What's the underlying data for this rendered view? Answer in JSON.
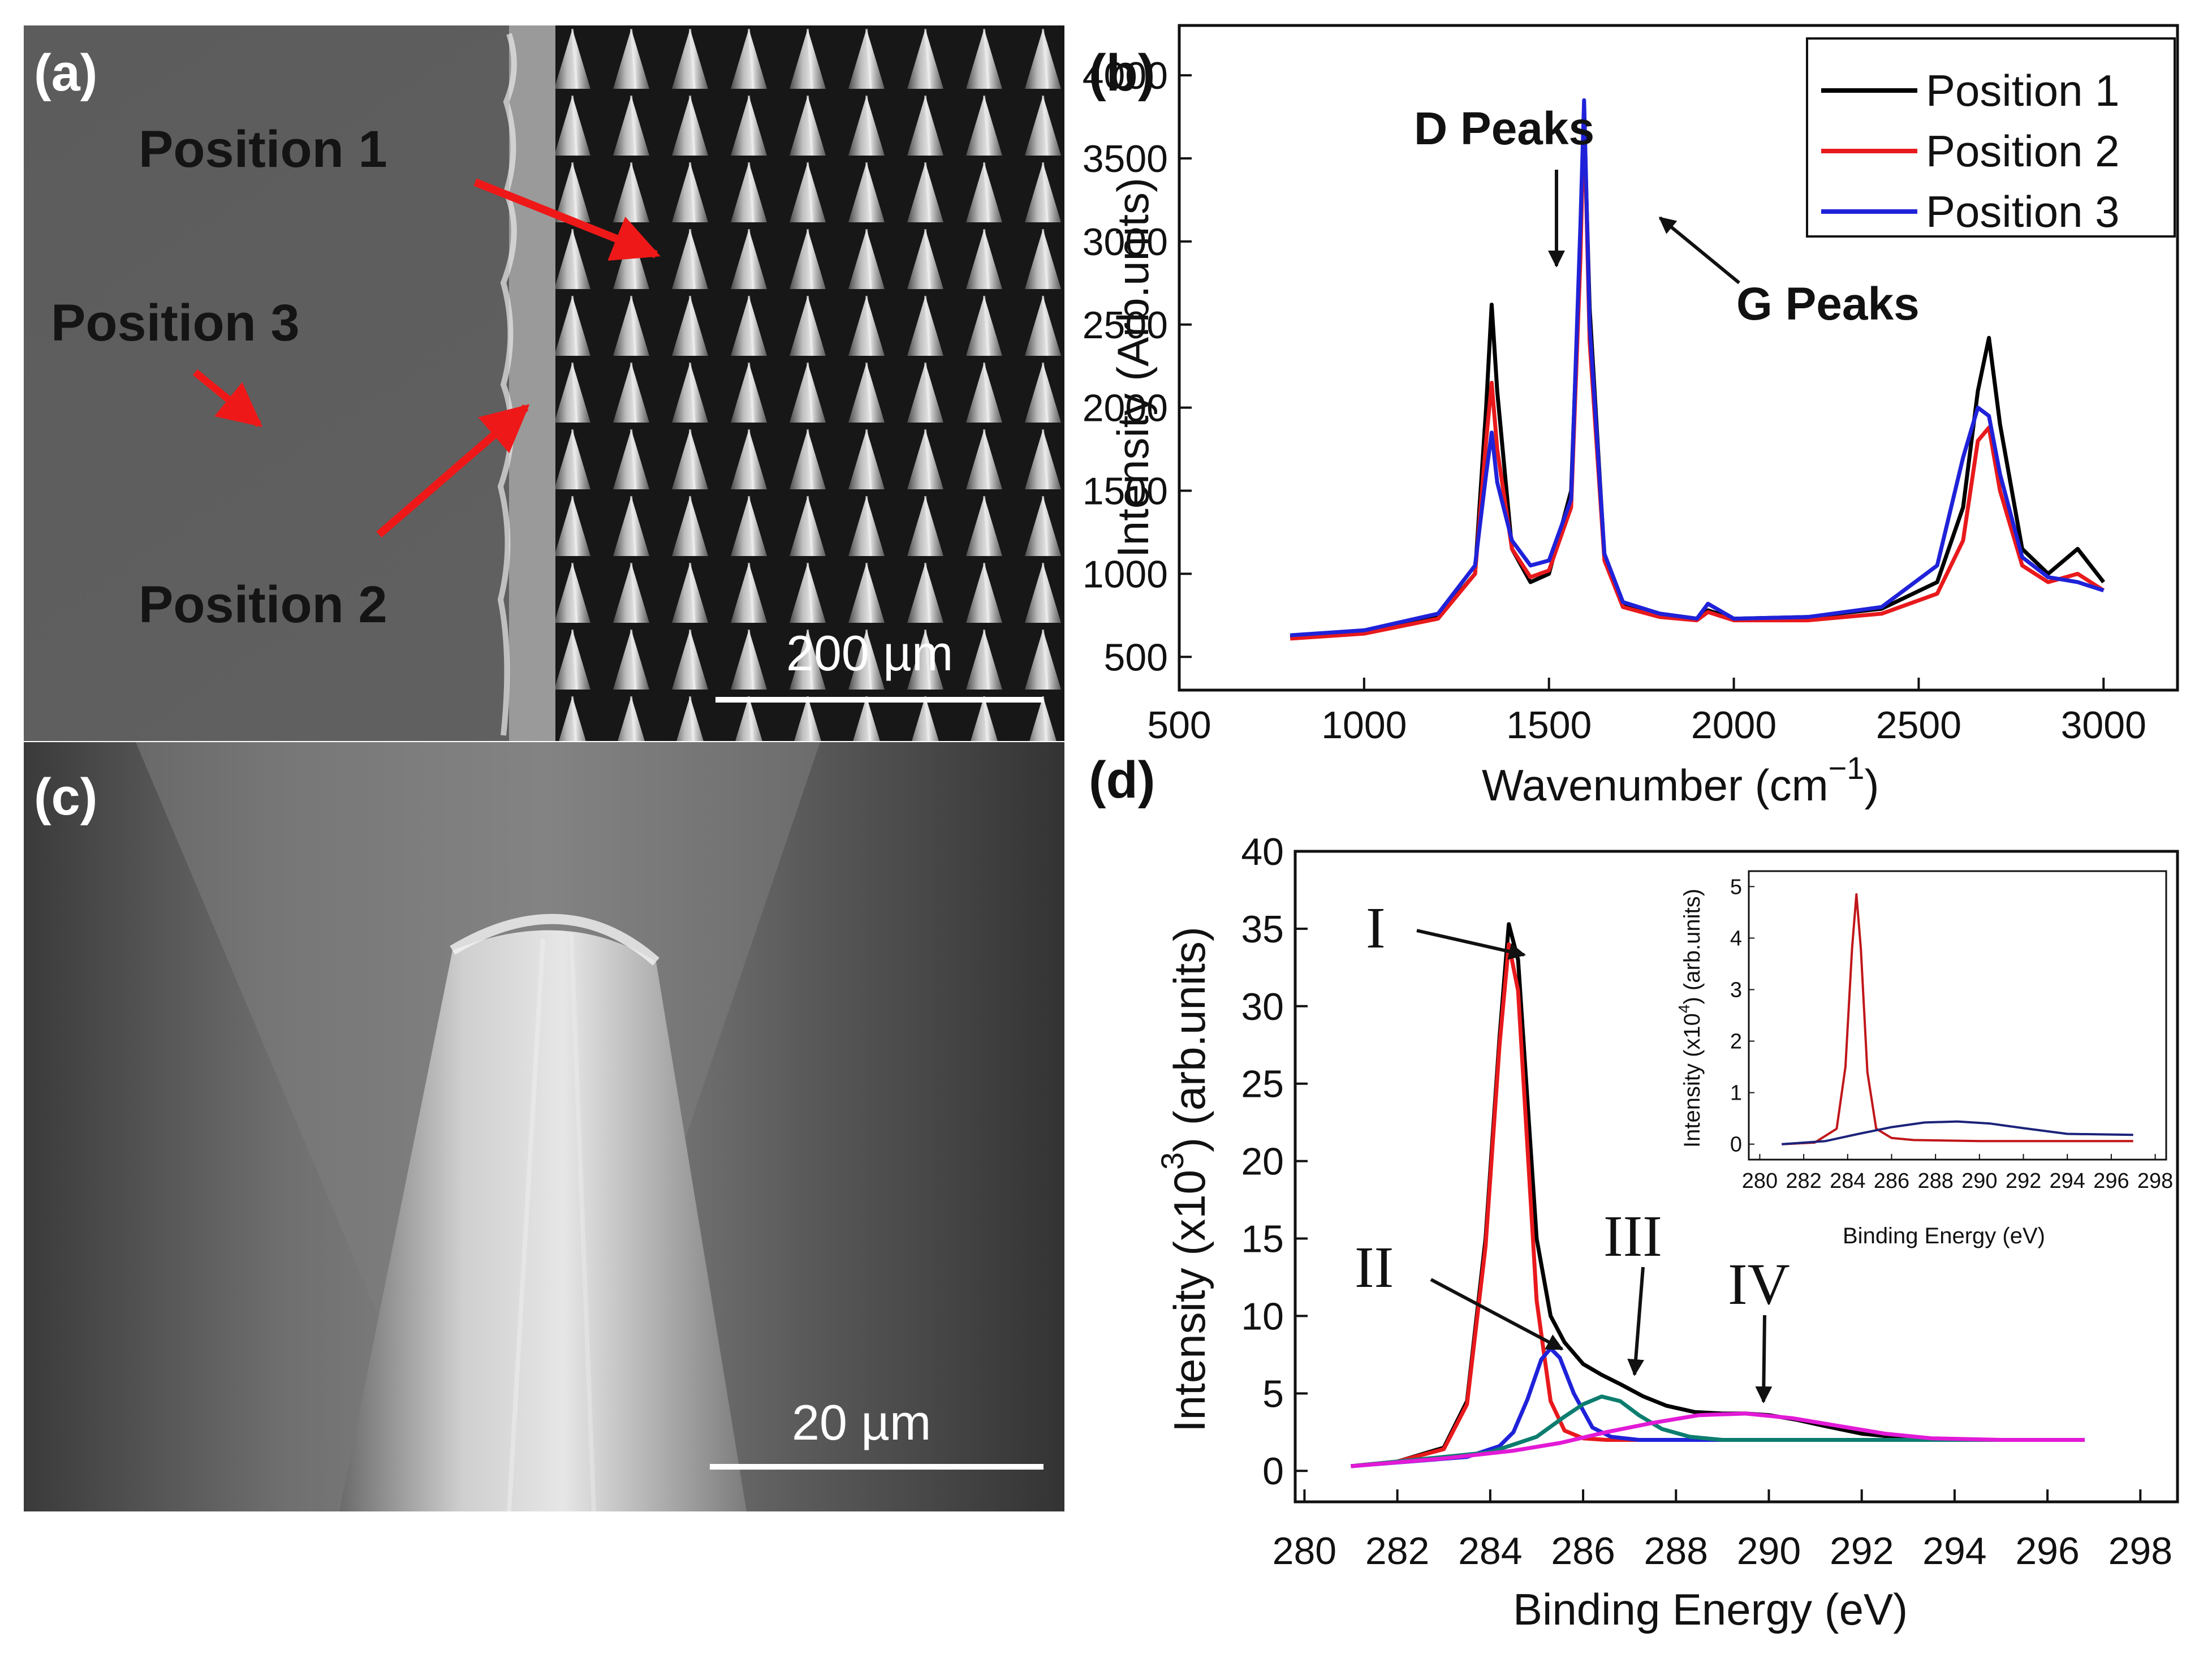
{
  "panels": {
    "a": {
      "label": "(a)",
      "texts": [
        "Position 1",
        "Position 3",
        "Position 2"
      ],
      "scale_bar": "200 µm"
    },
    "b": {
      "label": "(b)"
    },
    "c": {
      "label": "(c)",
      "scale_bar": "20 µm"
    },
    "d": {
      "label": "(d)"
    }
  },
  "colors": {
    "black": "#000000",
    "red": "#e8191c",
    "blue": "#1f22d8",
    "teal": "#0c7d6f",
    "magenta": "#e21ad6",
    "dark_red": "#c0161a",
    "navy": "#1c237a",
    "arrow_red": "#ef1818"
  },
  "chart_data": [
    {
      "id": "raman",
      "type": "line",
      "xlabel_main": "Wavenumber (cm",
      "xlabel_sup": "−1",
      "xlabel_close": ")",
      "ylabel": "Intensity (Arb.units)",
      "xlim": [
        500,
        3200
      ],
      "ylim": [
        300,
        4300
      ],
      "xticks": [
        "500",
        "1000",
        "1500",
        "2000",
        "2500",
        "3000"
      ],
      "yticks": [
        "500",
        "1000",
        "1500",
        "2000",
        "2500",
        "3000",
        "3500",
        "4000"
      ],
      "legend": [
        "Position 1",
        "Position 2",
        "Position 3"
      ],
      "annotations": [
        "D Peaks",
        "G Peaks"
      ],
      "series": [
        {
          "name": "Position 1",
          "color": "#000000",
          "x": [
            800,
            1000,
            1200,
            1300,
            1330,
            1345,
            1360,
            1400,
            1450,
            1500,
            1560,
            1585,
            1595,
            1610,
            1650,
            1700,
            1800,
            1900,
            1930,
            2000,
            2200,
            2400,
            2550,
            2620,
            2660,
            2690,
            2720,
            2780,
            2850,
            2930,
            3000
          ],
          "y": [
            620,
            650,
            740,
            1000,
            2000,
            2620,
            2100,
            1150,
            950,
            1000,
            1500,
            3000,
            3750,
            2600,
            1100,
            820,
            760,
            730,
            780,
            730,
            740,
            790,
            950,
            1400,
            2100,
            2420,
            1900,
            1150,
            1000,
            1150,
            950
          ]
        },
        {
          "name": "Position 2",
          "color": "#e8191c",
          "x": [
            800,
            1000,
            1200,
            1300,
            1330,
            1345,
            1360,
            1400,
            1450,
            1500,
            1560,
            1585,
            1595,
            1610,
            1650,
            1700,
            1800,
            1900,
            1930,
            2000,
            2200,
            2400,
            2550,
            2620,
            2660,
            2690,
            2720,
            2780,
            2850,
            2930,
            3000
          ],
          "y": [
            610,
            640,
            730,
            1000,
            1800,
            2150,
            1750,
            1150,
            980,
            1020,
            1400,
            2900,
            3800,
            2400,
            1080,
            800,
            740,
            720,
            770,
            720,
            720,
            760,
            880,
            1200,
            1800,
            1880,
            1500,
            1050,
            950,
            1000,
            900
          ]
        },
        {
          "name": "Position 3",
          "color": "#1f22d8",
          "x": [
            800,
            1000,
            1200,
            1300,
            1330,
            1345,
            1360,
            1400,
            1450,
            1500,
            1560,
            1585,
            1595,
            1610,
            1650,
            1700,
            1800,
            1900,
            1930,
            2000,
            2200,
            2400,
            2550,
            2620,
            2660,
            2690,
            2720,
            2780,
            2850,
            2930,
            3000
          ],
          "y": [
            630,
            660,
            760,
            1050,
            1600,
            1850,
            1550,
            1200,
            1050,
            1080,
            1450,
            3100,
            3850,
            2500,
            1120,
            830,
            760,
            730,
            820,
            730,
            740,
            800,
            1050,
            1700,
            2000,
            1950,
            1600,
            1100,
            980,
            950,
            900
          ]
        }
      ]
    },
    {
      "id": "xps",
      "type": "line",
      "xlabel": "Binding Energy (eV)",
      "ylabel_main": "Intensity (x10",
      "ylabel_sup": "3",
      "ylabel_close": ") (arb.units)",
      "xlim": [
        279.8,
        298.8
      ],
      "ylim": [
        -2,
        40
      ],
      "xticks": [
        "280",
        "282",
        "284",
        "286",
        "288",
        "290",
        "292",
        "294",
        "296",
        "298"
      ],
      "yticks": [
        "0",
        "5",
        "10",
        "15",
        "20",
        "25",
        "30",
        "35",
        "40"
      ],
      "peak_labels": [
        "I",
        "II",
        "III",
        "IV"
      ],
      "series": [
        {
          "name": "envelope",
          "color": "#000000",
          "x": [
            281.0,
            282.0,
            283.0,
            283.5,
            283.9,
            284.2,
            284.4,
            284.6,
            284.8,
            285.0,
            285.3,
            285.6,
            286.0,
            286.4,
            286.8,
            287.3,
            287.8,
            288.4,
            289.0,
            289.5,
            290.0,
            290.6,
            291.2,
            292.0,
            293.0,
            294.0,
            295.0,
            296.0,
            296.8
          ],
          "y": [
            0.3,
            0.6,
            1.5,
            4.5,
            15.0,
            28.0,
            35.3,
            33.0,
            24.0,
            15.0,
            10.0,
            8.3,
            6.9,
            6.2,
            5.6,
            4.8,
            4.2,
            3.8,
            3.7,
            3.7,
            3.6,
            3.3,
            2.9,
            2.4,
            2.1,
            2.0,
            2.0,
            2.0,
            2.0
          ]
        },
        {
          "name": "Peak I",
          "color": "#e8191c",
          "x": [
            281.0,
            282.0,
            283.0,
            283.5,
            283.9,
            284.2,
            284.4,
            284.6,
            284.8,
            285.0,
            285.3,
            285.6,
            286.0,
            286.5,
            287.0,
            288.0,
            290.0,
            293.0,
            296.8
          ],
          "y": [
            0.3,
            0.6,
            1.4,
            4.3,
            14.5,
            27.5,
            34.0,
            31.0,
            21.0,
            11.0,
            4.5,
            2.6,
            2.1,
            2.0,
            2.0,
            2.0,
            2.0,
            2.0,
            2.0
          ]
        },
        {
          "name": "Peak II",
          "color": "#1f22d8",
          "x": [
            281.0,
            283.5,
            284.2,
            284.5,
            284.8,
            285.1,
            285.3,
            285.5,
            285.8,
            286.2,
            286.6,
            287.2,
            288.0,
            290.0,
            296.8
          ],
          "y": [
            0.3,
            0.9,
            1.6,
            2.5,
            4.6,
            7.2,
            7.9,
            7.3,
            5.0,
            2.8,
            2.2,
            2.0,
            2.0,
            2.0,
            2.0
          ]
        },
        {
          "name": "Peak III",
          "color": "#0c7d6f",
          "x": [
            281.0,
            284.0,
            285.0,
            285.6,
            286.0,
            286.4,
            286.8,
            287.2,
            287.7,
            288.3,
            289.0,
            290.0,
            296.8
          ],
          "y": [
            0.3,
            1.2,
            2.2,
            3.5,
            4.3,
            4.8,
            4.5,
            3.6,
            2.7,
            2.2,
            2.0,
            2.0,
            2.0
          ]
        },
        {
          "name": "Peak IV",
          "color": "#e21ad6",
          "x": [
            281.0,
            283.0,
            284.5,
            285.5,
            286.5,
            287.5,
            288.5,
            289.5,
            290.5,
            291.5,
            292.5,
            293.5,
            295.0,
            296.8
          ],
          "y": [
            0.3,
            0.8,
            1.3,
            1.8,
            2.5,
            3.1,
            3.6,
            3.7,
            3.4,
            2.9,
            2.4,
            2.1,
            2.0,
            2.0
          ]
        }
      ]
    },
    {
      "id": "xps_inset",
      "type": "line",
      "xlabel": "Binding Energy (eV)",
      "ylabel_main": "Intensity (x10",
      "ylabel_sup": "4",
      "ylabel_close": ") (arb.units)",
      "xlim": [
        279.5,
        298.5
      ],
      "ylim": [
        -0.3,
        5.3
      ],
      "xticks": [
        "280",
        "282",
        "284",
        "286",
        "288",
        "290",
        "292",
        "294",
        "296",
        "298"
      ],
      "yticks": [
        "0",
        "1",
        "2",
        "3",
        "4",
        "5"
      ],
      "series": [
        {
          "name": "envelope",
          "color": "#c0161a",
          "x": [
            281.0,
            282.5,
            283.5,
            283.9,
            284.2,
            284.4,
            284.6,
            284.9,
            285.3,
            286.0,
            287.0,
            290.0,
            297.0
          ],
          "y": [
            0.0,
            0.03,
            0.3,
            1.5,
            3.8,
            4.85,
            3.8,
            1.4,
            0.3,
            0.12,
            0.08,
            0.06,
            0.06
          ]
        },
        {
          "name": "background",
          "color": "#1c237a",
          "x": [
            281.0,
            283.0,
            284.5,
            286.0,
            287.5,
            289.0,
            290.5,
            292.0,
            294.0,
            297.0
          ],
          "y": [
            0.0,
            0.06,
            0.2,
            0.33,
            0.42,
            0.44,
            0.4,
            0.31,
            0.2,
            0.18
          ]
        }
      ]
    }
  ]
}
